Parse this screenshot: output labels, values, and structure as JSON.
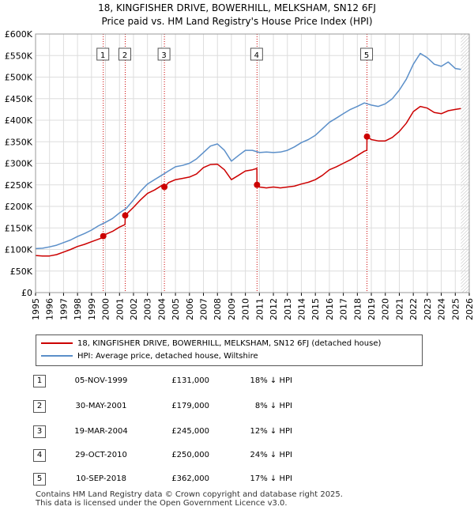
{
  "title_line1": "18, KINGFISHER DRIVE, BOWERHILL, MELKSHAM, SN12 6FJ",
  "title_line2": "Price paid vs. HM Land Registry's House Price Index (HPI)",
  "colors": {
    "property": "#cc0000",
    "hpi": "#5b8fc9",
    "marker_line": "#cc0000",
    "grid": "#dddddd"
  },
  "chart_data": {
    "type": "line",
    "x_range": [
      1995,
      2026
    ],
    "y_range": [
      0,
      600000
    ],
    "x_ticks": [
      "1995",
      "1996",
      "1997",
      "1998",
      "1999",
      "2000",
      "2001",
      "2002",
      "2003",
      "2004",
      "2005",
      "2006",
      "2007",
      "2008",
      "2009",
      "2010",
      "2011",
      "2012",
      "2013",
      "2014",
      "2015",
      "2016",
      "2017",
      "2018",
      "2019",
      "2020",
      "2021",
      "2022",
      "2023",
      "2024",
      "2025",
      "2026"
    ],
    "y_ticks": [
      {
        "value": 0,
        "label": "£0"
      },
      {
        "value": 50000,
        "label": "£50K"
      },
      {
        "value": 100000,
        "label": "£100K"
      },
      {
        "value": 150000,
        "label": "£150K"
      },
      {
        "value": 200000,
        "label": "£200K"
      },
      {
        "value": 250000,
        "label": "£250K"
      },
      {
        "value": 300000,
        "label": "£300K"
      },
      {
        "value": 350000,
        "label": "£350K"
      },
      {
        "value": 400000,
        "label": "£400K"
      },
      {
        "value": 450000,
        "label": "£450K"
      },
      {
        "value": 500000,
        "label": "£500K"
      },
      {
        "value": 550000,
        "label": "£550K"
      },
      {
        "value": 600000,
        "label": "£600K"
      }
    ],
    "series": [
      {
        "name": "hpi",
        "x": [
          1995.0,
          1995.5,
          1996.0,
          1996.5,
          1997.0,
          1997.5,
          1998.0,
          1998.5,
          1999.0,
          1999.5,
          2000.0,
          2000.5,
          2001.0,
          2001.5,
          2002.0,
          2002.5,
          2003.0,
          2003.5,
          2004.0,
          2004.5,
          2005.0,
          2005.5,
          2006.0,
          2006.5,
          2007.0,
          2007.5,
          2008.0,
          2008.5,
          2009.0,
          2009.5,
          2010.0,
          2010.5,
          2011.0,
          2011.5,
          2012.0,
          2012.5,
          2013.0,
          2013.5,
          2014.0,
          2014.5,
          2015.0,
          2015.5,
          2016.0,
          2016.5,
          2017.0,
          2017.5,
          2018.0,
          2018.5,
          2019.0,
          2019.5,
          2020.0,
          2020.5,
          2021.0,
          2021.5,
          2022.0,
          2022.5,
          2023.0,
          2023.5,
          2024.0,
          2024.5,
          2025.0,
          2025.4
        ],
        "y": [
          102000,
          103000,
          106000,
          110000,
          116000,
          122000,
          130000,
          137000,
          145000,
          155000,
          163000,
          172000,
          185000,
          196000,
          215000,
          235000,
          252000,
          262000,
          272000,
          282000,
          292000,
          295000,
          300000,
          310000,
          325000,
          340000,
          345000,
          330000,
          305000,
          318000,
          330000,
          330000,
          325000,
          326000,
          325000,
          326000,
          330000,
          338000,
          348000,
          355000,
          365000,
          380000,
          395000,
          405000,
          415000,
          425000,
          432000,
          440000,
          435000,
          432000,
          438000,
          450000,
          470000,
          495000,
          530000,
          555000,
          545000,
          530000,
          525000,
          535000,
          520000,
          518000
        ]
      },
      {
        "name": "property",
        "x": [
          1995.0,
          1995.5,
          1996.0,
          1996.5,
          1997.0,
          1997.5,
          1998.0,
          1998.5,
          1999.0,
          1999.5,
          1999.84,
          1999.85,
          2000.0,
          2000.5,
          2001.0,
          2001.4,
          2001.41,
          2001.5,
          2002.0,
          2002.5,
          2003.0,
          2003.5,
          2004.0,
          2004.2,
          2004.21,
          2004.5,
          2005.0,
          2005.5,
          2006.0,
          2006.5,
          2007.0,
          2007.5,
          2008.0,
          2008.5,
          2009.0,
          2009.5,
          2010.0,
          2010.5,
          2010.82,
          2010.83,
          2011.0,
          2011.5,
          2012.0,
          2012.5,
          2013.0,
          2013.5,
          2014.0,
          2014.5,
          2015.0,
          2015.5,
          2016.0,
          2016.5,
          2017.0,
          2017.5,
          2018.0,
          2018.5,
          2018.68,
          2018.69,
          2019.0,
          2019.5,
          2020.0,
          2020.5,
          2021.0,
          2021.5,
          2022.0,
          2022.5,
          2023.0,
          2023.5,
          2024.0,
          2024.5,
          2025.0,
          2025.4
        ],
        "y": [
          86000,
          85000,
          85000,
          88000,
          94000,
          100000,
          107000,
          112000,
          118000,
          124000,
          128000,
          131000,
          135000,
          142000,
          152000,
          158000,
          179000,
          182000,
          198000,
          215000,
          230000,
          238000,
          248000,
          252000,
          245000,
          255000,
          262000,
          265000,
          268000,
          275000,
          290000,
          297000,
          298000,
          285000,
          262000,
          272000,
          282000,
          285000,
          288000,
          250000,
          245000,
          243000,
          245000,
          243000,
          245000,
          247000,
          252000,
          256000,
          262000,
          272000,
          285000,
          292000,
          300000,
          308000,
          318000,
          328000,
          330000,
          362000,
          355000,
          352000,
          352000,
          360000,
          374000,
          393000,
          420000,
          432000,
          428000,
          418000,
          415000,
          422000,
          425000,
          427000
        ]
      }
    ],
    "markers": [
      {
        "label": "1",
        "x": 1999.84,
        "y": 131000
      },
      {
        "label": "2",
        "x": 2001.41,
        "y": 179000
      },
      {
        "label": "3",
        "x": 2004.21,
        "y": 245000
      },
      {
        "label": "4",
        "x": 2010.83,
        "y": 250000
      },
      {
        "label": "5",
        "x": 2018.69,
        "y": 362000
      }
    ],
    "forecast_from": 2025.4
  },
  "legend": {
    "property_label": "18, KINGFISHER DRIVE, BOWERHILL, MELKSHAM, SN12 6FJ (detached house)",
    "hpi_label": "HPI: Average price, detached house, Wiltshire"
  },
  "transactions": [
    {
      "num": "1",
      "date": "05-NOV-1999",
      "price": "£131,000",
      "hpi": "18% ↓ HPI"
    },
    {
      "num": "2",
      "date": "30-MAY-2001",
      "price": "£179,000",
      "hpi": "8% ↓ HPI"
    },
    {
      "num": "3",
      "date": "19-MAR-2004",
      "price": "£245,000",
      "hpi": "12% ↓ HPI"
    },
    {
      "num": "4",
      "date": "29-OCT-2010",
      "price": "£250,000",
      "hpi": "24% ↓ HPI"
    },
    {
      "num": "5",
      "date": "10-SEP-2018",
      "price": "£362,000",
      "hpi": "17% ↓ HPI"
    }
  ],
  "footer": {
    "line1": "Contains HM Land Registry data © Crown copyright and database right 2025.",
    "line2": "This data is licensed under the Open Government Licence v3.0."
  }
}
